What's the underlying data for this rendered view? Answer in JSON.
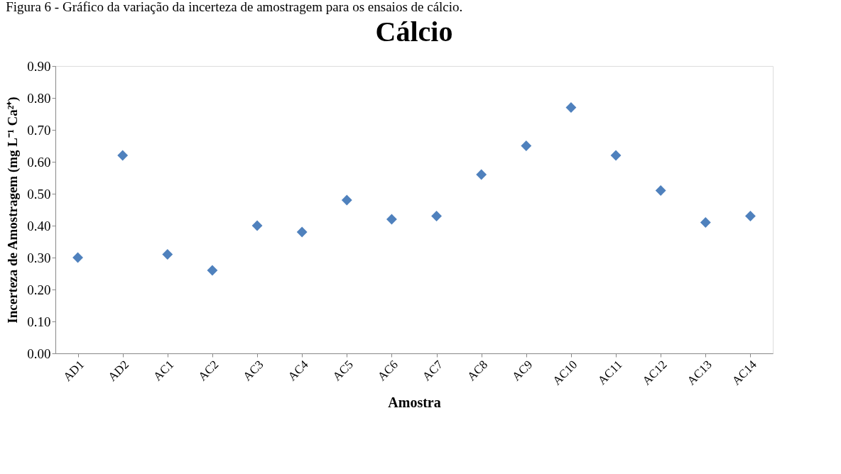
{
  "chart_data": {
    "type": "scatter",
    "title": "Cálcio",
    "xlabel": "Amostra",
    "ylabel": "Incerteza de Amostragem (mg L⁻¹ Ca²⁺)",
    "annotations": [
      "Figura 6 - Gráfico da variação da incerteza de amostragem para os ensaios de cálcio."
    ],
    "categories": [
      "AD1",
      "AD2",
      "AC1",
      "AC2",
      "AC3",
      "AC4",
      "AC5",
      "AC6",
      "AC7",
      "AC8",
      "AC9",
      "AC10",
      "AC11",
      "AC12",
      "AC13",
      "AC14"
    ],
    "series": [
      {
        "color": "#4f81bd",
        "values": [
          0.3,
          0.62,
          0.31,
          0.26,
          0.4,
          0.38,
          0.48,
          0.42,
          0.43,
          0.56,
          0.65,
          0.77,
          0.62,
          0.51,
          0.41,
          0.43
        ]
      }
    ],
    "ylim": [
      0,
      0.9
    ],
    "yticks": [
      {
        "value": 0,
        "label": "0.00"
      },
      {
        "value": 0.1,
        "label": "0.10"
      },
      {
        "value": 0.2,
        "label": "0.20"
      },
      {
        "value": 0.3,
        "label": "0.30"
      },
      {
        "value": 0.4,
        "label": "0.40"
      },
      {
        "value": 0.5,
        "label": "0.50"
      },
      {
        "value": 0.6,
        "label": "0.60"
      },
      {
        "value": 0.7,
        "label": "0.70"
      },
      {
        "value": 0.8,
        "label": "0.80"
      },
      {
        "value": 0.9,
        "label": "0.90"
      }
    ],
    "marker": "diamond",
    "grid": false
  }
}
